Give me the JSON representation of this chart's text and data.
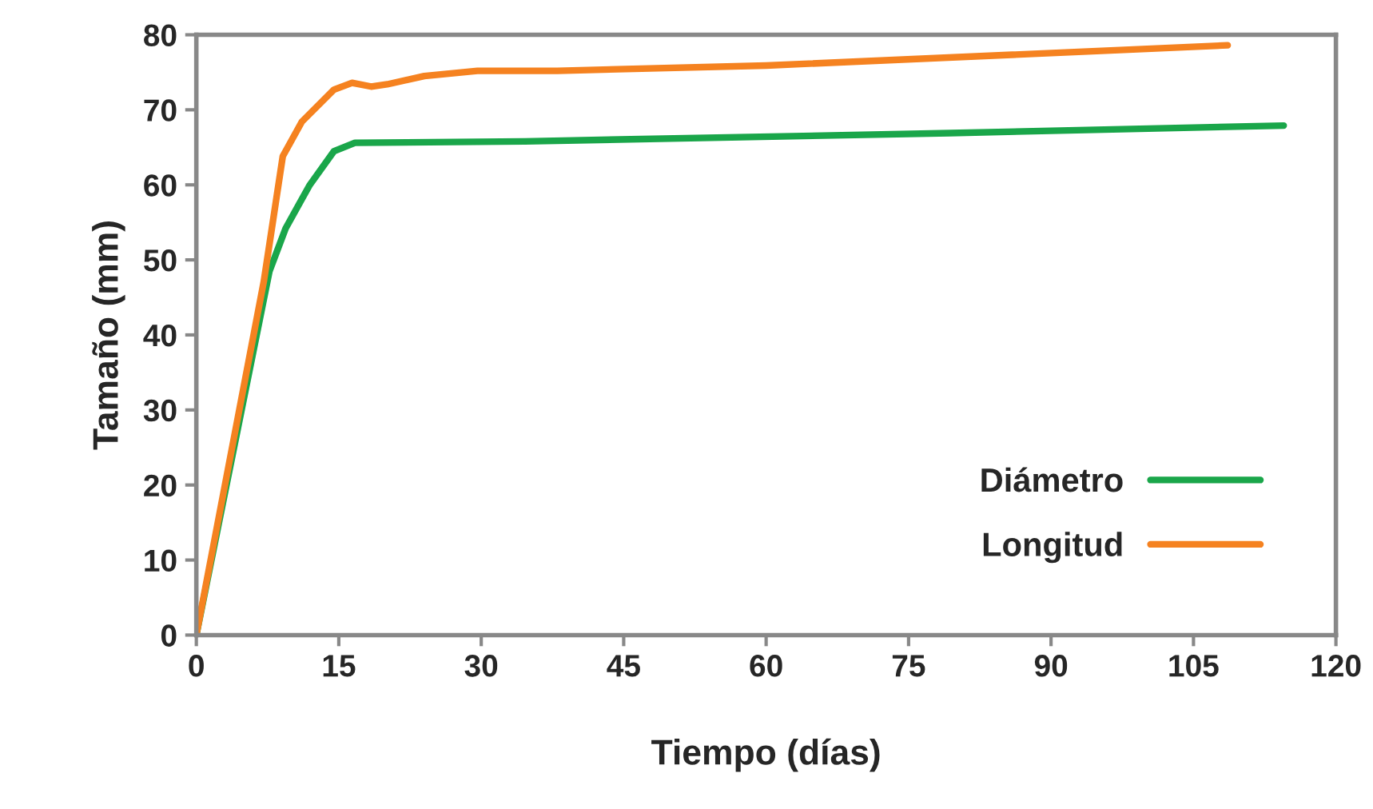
{
  "chart_data": {
    "type": "line",
    "xlabel": "Tiempo (días)",
    "ylabel": "Tamaño (mm)",
    "xlim": [
      0,
      120
    ],
    "xticks": [
      0,
      15,
      30,
      45,
      60,
      75,
      90,
      105,
      120
    ],
    "ylim": [
      0,
      80
    ],
    "yticks": [
      0,
      10,
      20,
      30,
      40,
      50,
      60,
      70,
      80
    ],
    "grid": false,
    "legend": "bottom right",
    "line_style": "solid",
    "marker": "none",
    "series": [
      {
        "name": "Diámetro",
        "color": "#1aa64a",
        "x": [
          0,
          7.7,
          9.4,
          11.9,
          14.5,
          16.7,
          34.6,
          79.4,
          114.5
        ],
        "values": [
          0,
          48.5,
          54.2,
          59.9,
          64.5,
          65.6,
          65.8,
          66.9,
          67.9
        ]
      },
      {
        "name": "Longitud",
        "color": "#f58220",
        "x": [
          0,
          7.1,
          9.1,
          11.1,
          14.5,
          16.4,
          18.4,
          20.1,
          24,
          29.6,
          38,
          60,
          108.6
        ],
        "values": [
          0,
          47.1,
          63.8,
          68.4,
          72.7,
          73.6,
          73.1,
          73.4,
          74.5,
          75.2,
          75.2,
          75.9,
          78.6
        ]
      }
    ]
  }
}
